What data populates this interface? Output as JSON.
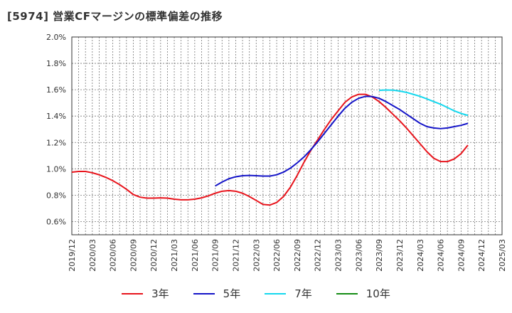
{
  "title": "[5974]  営業CFマージンの標準偏差の推移",
  "chart_data": {
    "type": "line",
    "ylim": [
      0.5,
      2.0
    ],
    "yticks": [
      "0.6%",
      "0.8%",
      "1.0%",
      "1.2%",
      "1.4%",
      "1.6%",
      "1.8%",
      "2.0%"
    ],
    "ytick_values": [
      0.6,
      0.8,
      1.0,
      1.2,
      1.4,
      1.6,
      1.8,
      2.0
    ],
    "xticks": [
      "2019/12",
      "2020/03",
      "2020/06",
      "2020/09",
      "2020/12",
      "2021/03",
      "2021/06",
      "2021/09",
      "2021/12",
      "2022/03",
      "2022/06",
      "2022/09",
      "2022/12",
      "2023/03",
      "2023/06",
      "2023/09",
      "2023/12",
      "2024/03",
      "2024/06",
      "2024/09",
      "2024/12",
      "2025/03"
    ],
    "grid": true,
    "legend_position": "bottom",
    "series": [
      {
        "name": "3年",
        "color": "#e8141c",
        "points": [
          [
            "2019/12",
            0.975
          ],
          [
            "2020/01",
            0.98
          ],
          [
            "2020/02",
            0.98
          ],
          [
            "2020/03",
            0.97
          ],
          [
            "2020/04",
            0.955
          ],
          [
            "2020/05",
            0.935
          ],
          [
            "2020/06",
            0.91
          ],
          [
            "2020/07",
            0.88
          ],
          [
            "2020/08",
            0.845
          ],
          [
            "2020/09",
            0.805
          ],
          [
            "2020/10",
            0.785
          ],
          [
            "2020/11",
            0.778
          ],
          [
            "2020/12",
            0.778
          ],
          [
            "2021/01",
            0.78
          ],
          [
            "2021/02",
            0.778
          ],
          [
            "2021/03",
            0.77
          ],
          [
            "2021/04",
            0.765
          ],
          [
            "2021/05",
            0.765
          ],
          [
            "2021/06",
            0.77
          ],
          [
            "2021/07",
            0.78
          ],
          [
            "2021/08",
            0.795
          ],
          [
            "2021/09",
            0.815
          ],
          [
            "2021/10",
            0.83
          ],
          [
            "2021/11",
            0.835
          ],
          [
            "2021/12",
            0.83
          ],
          [
            "2022/01",
            0.815
          ],
          [
            "2022/02",
            0.79
          ],
          [
            "2022/03",
            0.76
          ],
          [
            "2022/04",
            0.73
          ],
          [
            "2022/05",
            0.725
          ],
          [
            "2022/06",
            0.745
          ],
          [
            "2022/07",
            0.79
          ],
          [
            "2022/08",
            0.86
          ],
          [
            "2022/09",
            0.95
          ],
          [
            "2022/10",
            1.05
          ],
          [
            "2022/11",
            1.14
          ],
          [
            "2022/12",
            1.22
          ],
          [
            "2023/01",
            1.3
          ],
          [
            "2023/02",
            1.375
          ],
          [
            "2023/03",
            1.44
          ],
          [
            "2023/04",
            1.505
          ],
          [
            "2023/05",
            1.545
          ],
          [
            "2023/06",
            1.565
          ],
          [
            "2023/07",
            1.565
          ],
          [
            "2023/08",
            1.545
          ],
          [
            "2023/09",
            1.51
          ],
          [
            "2023/10",
            1.465
          ],
          [
            "2023/11",
            1.415
          ],
          [
            "2023/12",
            1.365
          ],
          [
            "2024/01",
            1.31
          ],
          [
            "2024/02",
            1.25
          ],
          [
            "2024/03",
            1.19
          ],
          [
            "2024/04",
            1.13
          ],
          [
            "2024/05",
            1.08
          ],
          [
            "2024/06",
            1.055
          ],
          [
            "2024/07",
            1.055
          ],
          [
            "2024/08",
            1.075
          ],
          [
            "2024/09",
            1.115
          ],
          [
            "2024/10",
            1.18
          ]
        ]
      },
      {
        "name": "5年",
        "color": "#1414c8",
        "points": [
          [
            "2021/09",
            0.87
          ],
          [
            "2021/10",
            0.9
          ],
          [
            "2021/11",
            0.925
          ],
          [
            "2021/12",
            0.94
          ],
          [
            "2022/01",
            0.948
          ],
          [
            "2022/02",
            0.95
          ],
          [
            "2022/03",
            0.948
          ],
          [
            "2022/04",
            0.945
          ],
          [
            "2022/05",
            0.945
          ],
          [
            "2022/06",
            0.955
          ],
          [
            "2022/07",
            0.975
          ],
          [
            "2022/08",
            1.005
          ],
          [
            "2022/09",
            1.045
          ],
          [
            "2022/10",
            1.09
          ],
          [
            "2022/11",
            1.145
          ],
          [
            "2022/12",
            1.205
          ],
          [
            "2023/01",
            1.27
          ],
          [
            "2023/02",
            1.335
          ],
          [
            "2023/03",
            1.4
          ],
          [
            "2023/04",
            1.46
          ],
          [
            "2023/05",
            1.505
          ],
          [
            "2023/06",
            1.535
          ],
          [
            "2023/07",
            1.55
          ],
          [
            "2023/08",
            1.548
          ],
          [
            "2023/09",
            1.535
          ],
          [
            "2023/10",
            1.51
          ],
          [
            "2023/11",
            1.48
          ],
          [
            "2023/12",
            1.45
          ],
          [
            "2024/01",
            1.415
          ],
          [
            "2024/02",
            1.38
          ],
          [
            "2024/03",
            1.345
          ],
          [
            "2024/04",
            1.32
          ],
          [
            "2024/05",
            1.31
          ],
          [
            "2024/06",
            1.305
          ],
          [
            "2024/07",
            1.31
          ],
          [
            "2024/08",
            1.32
          ],
          [
            "2024/09",
            1.33
          ],
          [
            "2024/10",
            1.345
          ]
        ]
      },
      {
        "name": "7年",
        "color": "#14d8ee",
        "points": [
          [
            "2023/09",
            1.595
          ],
          [
            "2023/10",
            1.598
          ],
          [
            "2023/11",
            1.597
          ],
          [
            "2023/12",
            1.59
          ],
          [
            "2024/01",
            1.58
          ],
          [
            "2024/02",
            1.565
          ],
          [
            "2024/03",
            1.55
          ],
          [
            "2024/04",
            1.53
          ],
          [
            "2024/05",
            1.51
          ],
          [
            "2024/06",
            1.49
          ],
          [
            "2024/07",
            1.465
          ],
          [
            "2024/08",
            1.44
          ],
          [
            "2024/09",
            1.42
          ],
          [
            "2024/10",
            1.405
          ]
        ]
      },
      {
        "name": "10年",
        "color": "#148c14",
        "points": []
      }
    ]
  }
}
